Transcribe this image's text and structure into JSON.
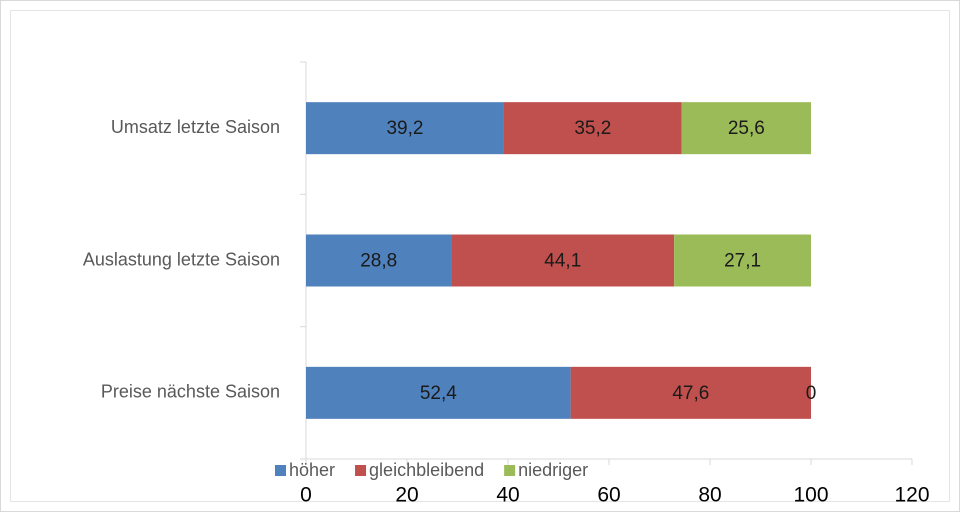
{
  "chart_data": {
    "type": "stacked_bar_horizontal",
    "categories": [
      "Umsatz letzte Saison",
      "Auslastung letzte Saison",
      "Preise nächste Saison"
    ],
    "series": [
      {
        "name": "höher",
        "color": "#4f81bd",
        "values": [
          39.2,
          28.8,
          52.4
        ],
        "value_labels": [
          "39,2",
          "28,8",
          "52,4"
        ]
      },
      {
        "name": "gleichbleibend",
        "color": "#c0504d",
        "values": [
          35.2,
          44.1,
          47.6
        ],
        "value_labels": [
          "35,2",
          "44,1",
          "47,6"
        ]
      },
      {
        "name": "niedriger",
        "color": "#9bbb59",
        "values": [
          25.6,
          27.1,
          0
        ],
        "value_labels": [
          "25,6",
          "27,1",
          "0"
        ]
      }
    ],
    "xlim": [
      0,
      120
    ],
    "xticks": [
      0,
      20,
      40,
      60,
      80,
      100,
      120
    ],
    "legend": "bottom"
  }
}
